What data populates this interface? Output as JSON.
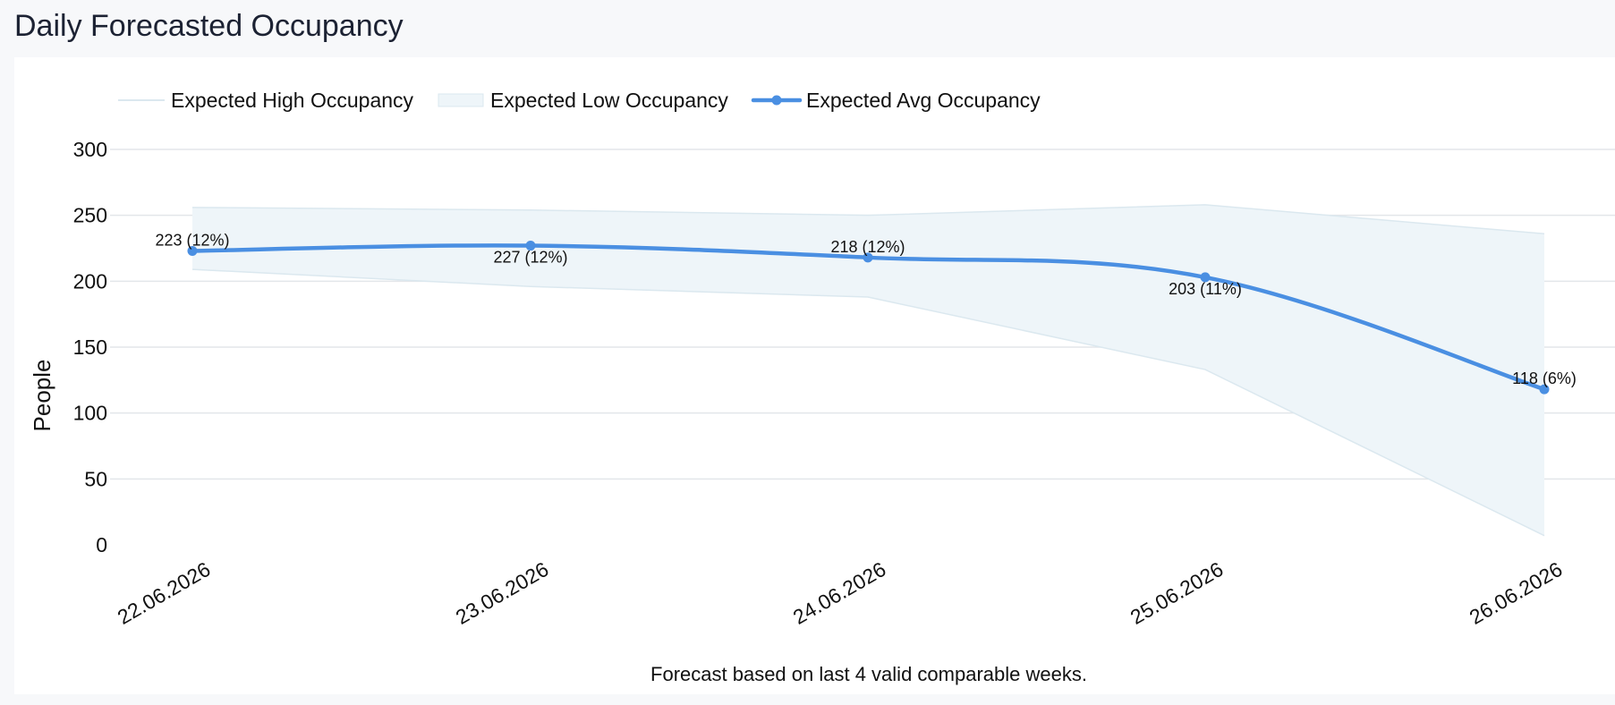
{
  "page": {
    "title": "Daily Forecasted Occupancy",
    "footnote": "Forecast based on last 4 valid comparable weeks."
  },
  "colors": {
    "avg_line": "#4a8fe2",
    "band_fill": "#eef5f9",
    "band_stroke": "#dbe8ef",
    "grid": "#e3e6ea",
    "background": "#f7f8fa"
  },
  "chart_data": {
    "type": "line",
    "categories": [
      "22.06.2026",
      "23.06.2026",
      "24.06.2026",
      "25.06.2026",
      "26.06.2026"
    ],
    "ylabel": "People",
    "ylim": [
      0,
      300
    ],
    "yticks": [
      0,
      50,
      100,
      150,
      200,
      250,
      300
    ],
    "grid": true,
    "legend_position": "top-left",
    "series": [
      {
        "name": "Expected High Occupancy",
        "values": [
          256,
          254,
          250,
          258,
          236
        ]
      },
      {
        "name": "Expected Low Occupancy",
        "values": [
          209,
          196,
          188,
          133,
          7
        ]
      },
      {
        "name": "Expected Avg Occupancy",
        "values": [
          223,
          227,
          218,
          203,
          118
        ],
        "labels": [
          "223 (12%)",
          "227 (12%)",
          "218 (12%)",
          "203 (11%)",
          "118 (6%)"
        ]
      }
    ]
  }
}
